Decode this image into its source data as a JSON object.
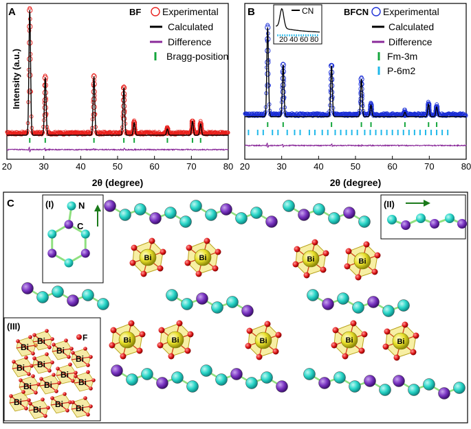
{
  "chart_data": [
    {
      "panel": "A",
      "type": "line",
      "sample": "BF",
      "xlabel": "2θ (degree)",
      "ylabel": "Intensity (a.u.)",
      "xlim": [
        20,
        80
      ],
      "xticks": [
        20,
        30,
        40,
        50,
        60,
        70,
        80
      ],
      "legend": [
        "Experimental",
        "Calculated",
        "Difference",
        "Bragg-position"
      ],
      "peaks": [
        {
          "x": 26.2,
          "y": 1.0
        },
        {
          "x": 30.4,
          "y": 0.46
        },
        {
          "x": 43.6,
          "y": 0.47
        },
        {
          "x": 51.7,
          "y": 0.38
        },
        {
          "x": 54.5,
          "y": 0.1
        },
        {
          "x": 63.5,
          "y": 0.05
        },
        {
          "x": 70.3,
          "y": 0.11
        },
        {
          "x": 72.5,
          "y": 0.09
        }
      ],
      "bragg_positions": [
        26.2,
        30.4,
        43.6,
        51.7,
        54.5,
        63.5,
        70.3,
        72.5
      ]
    },
    {
      "panel": "B",
      "type": "line",
      "sample": "BFCN",
      "xlabel": "2θ (degree)",
      "xlim": [
        20,
        80
      ],
      "xticks": [
        20,
        30,
        40,
        50,
        60,
        70,
        80
      ],
      "legend": [
        "Experimental",
        "Calculated",
        "Difference",
        "Fm-3m",
        "P-6m2"
      ],
      "peaks": [
        {
          "x": 26.2,
          "y": 1.0
        },
        {
          "x": 30.4,
          "y": 0.58
        },
        {
          "x": 43.5,
          "y": 0.57
        },
        {
          "x": 51.6,
          "y": 0.42
        },
        {
          "x": 54.2,
          "y": 0.13
        },
        {
          "x": 63.4,
          "y": 0.05
        },
        {
          "x": 69.8,
          "y": 0.14
        },
        {
          "x": 72.0,
          "y": 0.11
        }
      ],
      "bragg_fm3m": [
        26.2,
        30.4,
        43.5,
        51.6,
        54.2,
        63.4,
        69.8,
        72.0
      ],
      "bragg_p6m2": [
        21.0,
        23.5,
        25.0,
        27.5,
        29.0,
        31.5,
        33.5,
        35.0,
        37.5,
        39.0,
        41.0,
        42.5,
        44.5,
        46.0,
        47.5,
        49.0,
        50.5,
        52.5,
        54.0,
        55.5,
        57.0,
        58.5,
        60.0,
        61.5,
        63.0,
        64.5,
        66.0,
        67.5,
        69.0,
        70.5,
        72.0,
        73.5,
        75.0
      ],
      "inset": {
        "legend": "CN",
        "xticks": [
          "20",
          "40",
          "60",
          "80"
        ],
        "xlim": [
          10,
          80
        ]
      }
    }
  ],
  "panels": {
    "a_label": "A",
    "b_label": "B",
    "c_label": "C"
  },
  "structure": {
    "inset_i_label": "(I)",
    "inset_ii_label": "(II)",
    "inset_iii_label": "(III)",
    "atom_n": "N",
    "atom_c": "C",
    "atom_f": "F",
    "bi_label": "Bi"
  },
  "colors": {
    "experimental_a": "#e8201c",
    "experimental_b": "#1b2fd6",
    "calculated": "#000000",
    "difference": "#8a2a9a",
    "bragg_green": "#14a63c",
    "bragg_cyan": "#1fb8ea",
    "cyan_atom": "#2ad6c8",
    "purple_atom": "#7a35c2",
    "bi_atom": "#e8e02a",
    "o_atom": "#e01818"
  }
}
